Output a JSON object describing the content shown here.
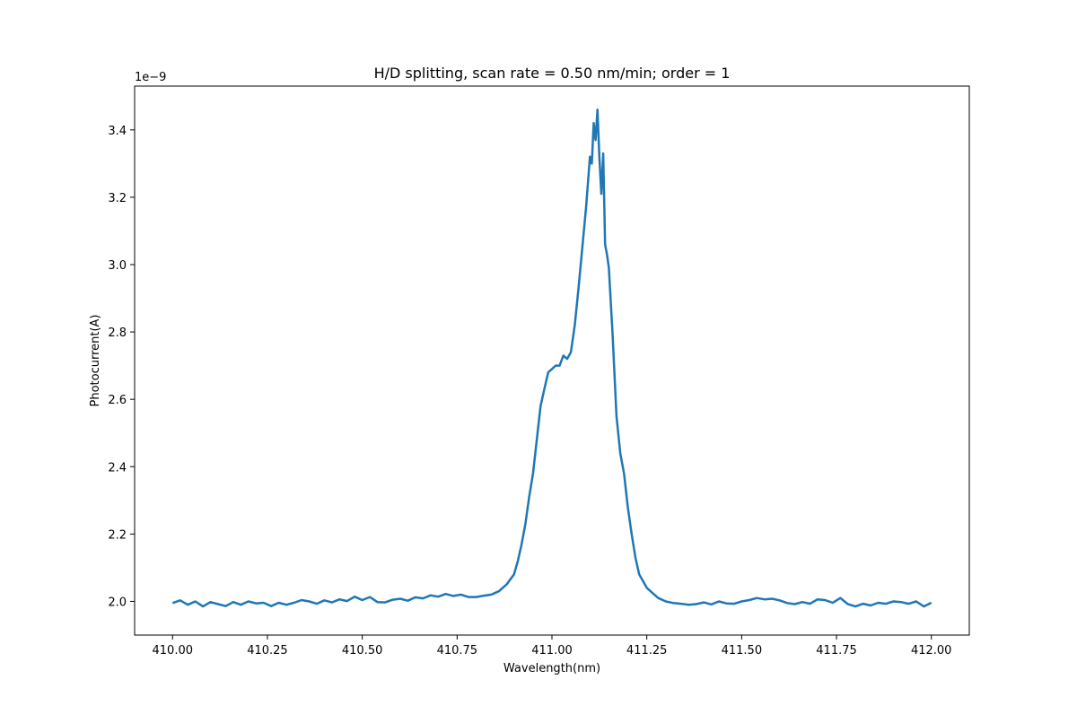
{
  "chart_data": {
    "type": "line",
    "title": "H/D splitting, scan rate = 0.50 nm/min; order = 1",
    "xlabel": "Wavelength(nm)",
    "ylabel": "Photocurrent(A)",
    "y_offset_text": "1e−9",
    "y_scale_factor": 1e-09,
    "xlim": [
      409.9,
      412.1
    ],
    "ylim": [
      1.9,
      3.53
    ],
    "x_ticks": [
      410.0,
      410.25,
      410.5,
      410.75,
      411.0,
      411.25,
      411.5,
      411.75,
      412.0
    ],
    "x_tick_labels": [
      "410.00",
      "410.25",
      "410.50",
      "410.75",
      "411.00",
      "411.25",
      "411.50",
      "411.75",
      "412.00"
    ],
    "y_ticks": [
      2.0,
      2.2,
      2.4,
      2.6,
      2.8,
      3.0,
      3.2,
      3.4
    ],
    "y_tick_labels": [
      "2.0",
      "2.2",
      "2.4",
      "2.6",
      "2.8",
      "3.0",
      "3.2",
      "3.4"
    ],
    "grid": false,
    "colors": {
      "line": "#1f77b4"
    },
    "series": [
      {
        "x": [
          410.0,
          410.02,
          410.04,
          410.06,
          410.08,
          410.1,
          410.12,
          410.14,
          410.16,
          410.18,
          410.2,
          410.22,
          410.24,
          410.26,
          410.28,
          410.3,
          410.32,
          410.34,
          410.36,
          410.38,
          410.4,
          410.42,
          410.44,
          410.46,
          410.48,
          410.5,
          410.52,
          410.54,
          410.56,
          410.58,
          410.6,
          410.62,
          410.64,
          410.66,
          410.68,
          410.7,
          410.72,
          410.74,
          410.76,
          410.78,
          410.8,
          410.82,
          410.84,
          410.86,
          410.88,
          410.9,
          410.91,
          410.92,
          410.93,
          410.94,
          410.95,
          410.96,
          410.97,
          410.98,
          410.99,
          411.0,
          411.01,
          411.02,
          411.03,
          411.04,
          411.05,
          411.06,
          411.07,
          411.08,
          411.09,
          411.1,
          411.105,
          411.11,
          411.115,
          411.12,
          411.125,
          411.13,
          411.135,
          411.14,
          411.145,
          411.15,
          411.16,
          411.17,
          411.18,
          411.19,
          411.2,
          411.21,
          411.22,
          411.23,
          411.24,
          411.25,
          411.26,
          411.27,
          411.28,
          411.3,
          411.32,
          411.34,
          411.36,
          411.38,
          411.4,
          411.42,
          411.44,
          411.46,
          411.48,
          411.5,
          411.52,
          411.54,
          411.56,
          411.58,
          411.6,
          411.62,
          411.64,
          411.66,
          411.68,
          411.7,
          411.72,
          411.74,
          411.76,
          411.78,
          411.8,
          411.82,
          411.84,
          411.86,
          411.88,
          411.9,
          411.92,
          411.94,
          411.96,
          411.98,
          412.0
        ],
        "values": [
          1.995,
          2.003,
          1.99,
          2.0,
          1.985,
          1.998,
          1.992,
          1.986,
          1.998,
          1.99,
          2.0,
          1.994,
          1.996,
          1.986,
          1.996,
          1.99,
          1.996,
          2.004,
          2.0,
          1.993,
          2.003,
          1.997,
          2.006,
          2.001,
          2.014,
          2.004,
          2.013,
          1.998,
          1.997,
          2.005,
          2.008,
          2.002,
          2.012,
          2.009,
          2.018,
          2.014,
          2.022,
          2.016,
          2.02,
          2.013,
          2.013,
          2.017,
          2.02,
          2.03,
          2.05,
          2.08,
          2.12,
          2.17,
          2.23,
          2.31,
          2.38,
          2.48,
          2.58,
          2.63,
          2.68,
          2.69,
          2.7,
          2.7,
          2.73,
          2.72,
          2.74,
          2.82,
          2.93,
          3.05,
          3.17,
          3.32,
          3.3,
          3.42,
          3.37,
          3.46,
          3.32,
          3.21,
          3.33,
          3.06,
          3.03,
          2.99,
          2.79,
          2.55,
          2.44,
          2.38,
          2.28,
          2.2,
          2.13,
          2.08,
          2.06,
          2.04,
          2.03,
          2.02,
          2.01,
          2.0,
          1.995,
          1.993,
          1.99,
          1.992,
          1.997,
          1.991,
          2.0,
          1.994,
          1.993,
          2.0,
          2.004,
          2.01,
          2.006,
          2.008,
          2.003,
          1.995,
          1.992,
          1.998,
          1.993,
          2.006,
          2.004,
          1.996,
          2.01,
          1.992,
          1.985,
          1.993,
          1.988,
          1.996,
          1.993,
          2.0,
          1.998,
          1.993,
          2.0,
          1.985,
          1.996
        ]
      }
    ]
  }
}
